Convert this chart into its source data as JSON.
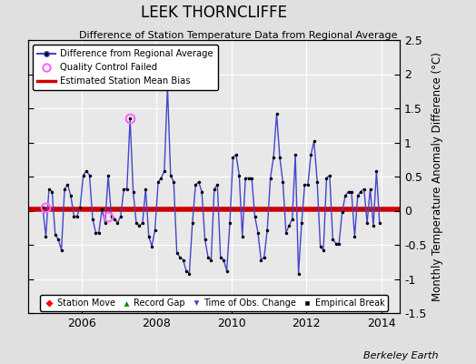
{
  "title": "LEEK THORNCLIFFE",
  "subtitle": "Difference of Station Temperature Data from Regional Average",
  "ylabel": "Monthly Temperature Anomaly Difference (°C)",
  "footer": "Berkeley Earth",
  "bias": 0.02,
  "ylim": [
    -1.5,
    2.5
  ],
  "xlim": [
    2004.58,
    2014.5
  ],
  "bg_color": "#e0e0e0",
  "plot_bg_color": "#e8e8e8",
  "grid_color": "#ffffff",
  "line_color": "#4444cc",
  "line_fill_color": "#aaaaee",
  "marker_color": "#000000",
  "bias_color": "#cc0000",
  "qc_color": "#ff66ff",
  "xticks": [
    2006,
    2008,
    2010,
    2012,
    2014
  ],
  "yticks_right": [
    -1.5,
    -1.0,
    -0.5,
    0.0,
    0.5,
    1.0,
    1.5,
    2.0,
    2.5
  ],
  "ytick_labels_right": [
    "-1.5",
    "-1",
    "-0.5",
    "0",
    "0.5",
    "1",
    "1.5",
    "2",
    "2.5"
  ],
  "data": {
    "times": [
      2004.958,
      2005.042,
      2005.125,
      2005.208,
      2005.292,
      2005.375,
      2005.458,
      2005.542,
      2005.625,
      2005.708,
      2005.792,
      2005.875,
      2005.958,
      2006.042,
      2006.125,
      2006.208,
      2006.292,
      2006.375,
      2006.458,
      2006.542,
      2006.625,
      2006.708,
      2006.792,
      2006.875,
      2006.958,
      2007.042,
      2007.125,
      2007.208,
      2007.292,
      2007.375,
      2007.458,
      2007.542,
      2007.625,
      2007.708,
      2007.792,
      2007.875,
      2007.958,
      2008.042,
      2008.125,
      2008.208,
      2008.292,
      2008.375,
      2008.458,
      2008.542,
      2008.625,
      2008.708,
      2008.792,
      2008.875,
      2008.958,
      2009.042,
      2009.125,
      2009.208,
      2009.292,
      2009.375,
      2009.458,
      2009.542,
      2009.625,
      2009.708,
      2009.792,
      2009.875,
      2009.958,
      2010.042,
      2010.125,
      2010.208,
      2010.292,
      2010.375,
      2010.458,
      2010.542,
      2010.625,
      2010.708,
      2010.792,
      2010.875,
      2010.958,
      2011.042,
      2011.125,
      2011.208,
      2011.292,
      2011.375,
      2011.458,
      2011.542,
      2011.625,
      2011.708,
      2011.792,
      2011.875,
      2011.958,
      2012.042,
      2012.125,
      2012.208,
      2012.292,
      2012.375,
      2012.458,
      2012.542,
      2012.625,
      2012.708,
      2012.792,
      2012.875,
      2012.958,
      2013.042,
      2013.125,
      2013.208,
      2013.292,
      2013.375,
      2013.458,
      2013.542,
      2013.625,
      2013.708,
      2013.792,
      2013.875,
      2013.958
    ],
    "values": [
      0.05,
      -0.38,
      0.32,
      0.28,
      -0.35,
      -0.42,
      -0.58,
      0.32,
      0.38,
      0.22,
      -0.08,
      -0.08,
      0.05,
      0.52,
      0.58,
      0.52,
      -0.12,
      -0.32,
      -0.32,
      0.02,
      -0.18,
      0.52,
      -0.08,
      -0.12,
      -0.18,
      -0.08,
      0.32,
      0.32,
      1.35,
      0.28,
      -0.18,
      -0.22,
      -0.18,
      0.32,
      -0.38,
      -0.52,
      -0.28,
      0.42,
      0.48,
      0.58,
      1.82,
      0.52,
      0.42,
      -0.62,
      -0.68,
      -0.72,
      -0.88,
      -0.92,
      -0.18,
      0.38,
      0.42,
      0.28,
      -0.42,
      -0.68,
      -0.72,
      0.32,
      0.38,
      -0.68,
      -0.72,
      -0.88,
      -0.18,
      0.78,
      0.82,
      0.52,
      -0.38,
      0.48,
      0.48,
      0.48,
      -0.08,
      -0.32,
      -0.72,
      -0.68,
      -0.28,
      0.48,
      0.78,
      1.42,
      0.78,
      0.42,
      -0.32,
      -0.22,
      -0.12,
      0.82,
      -0.92,
      -0.18,
      0.38,
      0.38,
      0.82,
      1.02,
      0.42,
      -0.52,
      -0.58,
      0.48,
      0.52,
      -0.42,
      -0.48,
      -0.48,
      -0.02,
      0.22,
      0.28,
      0.28,
      -0.38,
      0.22,
      0.28,
      0.32,
      -0.18,
      0.32,
      -0.22,
      0.58,
      -0.18
    ],
    "qc_times": [
      2005.042,
      2006.708,
      2007.292
    ],
    "qc_values": [
      0.05,
      -0.08,
      1.35
    ]
  }
}
